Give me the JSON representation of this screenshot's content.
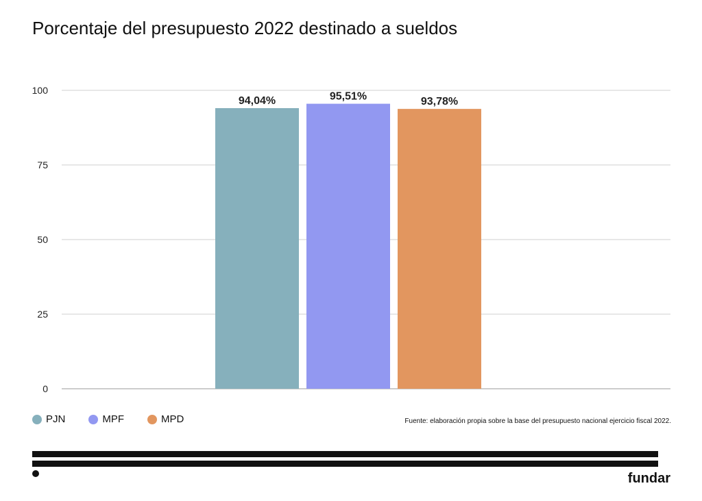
{
  "chart_data": {
    "type": "bar",
    "title": "Porcentaje del presupuesto 2022 destinado a sueldos",
    "categories": [
      "PJN",
      "MPF",
      "MPD"
    ],
    "values": [
      94.04,
      95.51,
      93.78
    ],
    "value_labels": [
      "94,04%",
      "95,51%",
      "93,78%"
    ],
    "colors": [
      "#86b0bc",
      "#9298f1",
      "#e2965f"
    ],
    "yticks": [
      "0",
      "25",
      "50",
      "75",
      "100"
    ],
    "ylim": [
      0,
      100
    ],
    "grid": true,
    "legend_position": "bottom-left"
  },
  "legend": [
    {
      "label": "PJN",
      "color": "#86b0bc"
    },
    {
      "label": "MPF",
      "color": "#9298f1"
    },
    {
      "label": "MPD",
      "color": "#e2965f"
    }
  ],
  "source": "Fuente: elaboración propia sobre la base del presupuesto nacional ejercicio fiscal 2022.",
  "brand": "fundar"
}
